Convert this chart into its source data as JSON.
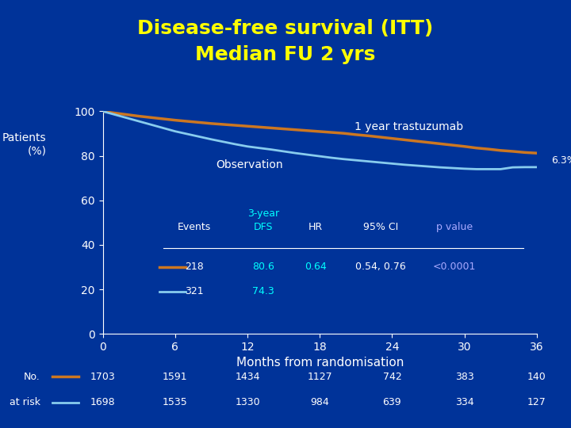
{
  "title_line1": "Disease-free survival (ITT)",
  "title_line2": "Median FU 2 yrs",
  "title_color": "#FFFF00",
  "background_color": "#003399",
  "ylabel": "Patients\n(%)",
  "xlabel": "Months from randomisation",
  "xlabel_color": "#FFFFFF",
  "ylabel_color": "#FFFFFF",
  "tick_color": "#FFFFFF",
  "xlim": [
    0,
    36
  ],
  "ylim": [
    0,
    100
  ],
  "xticks": [
    0,
    6,
    12,
    18,
    24,
    30,
    36
  ],
  "yticks": [
    0,
    20,
    40,
    60,
    80,
    100
  ],
  "trastuzumab_x": [
    0,
    1,
    2,
    3,
    4,
    5,
    6,
    7,
    8,
    9,
    10,
    11,
    12,
    13,
    14,
    15,
    16,
    17,
    18,
    19,
    20,
    21,
    22,
    23,
    24,
    25,
    26,
    27,
    28,
    29,
    30,
    31,
    32,
    33,
    34,
    35,
    36
  ],
  "trastuzumab_y": [
    100,
    99.2,
    98.5,
    97.8,
    97.2,
    96.6,
    96.0,
    95.5,
    95.0,
    94.5,
    94.1,
    93.7,
    93.3,
    92.9,
    92.5,
    92.1,
    91.7,
    91.3,
    90.9,
    90.5,
    90.1,
    89.5,
    89.0,
    88.4,
    87.8,
    87.2,
    86.6,
    86.0,
    85.4,
    84.8,
    84.2,
    83.5,
    83.0,
    82.4,
    82.0,
    81.5,
    81.2
  ],
  "observation_x": [
    0,
    1,
    2,
    3,
    4,
    5,
    6,
    7,
    8,
    9,
    10,
    11,
    12,
    13,
    14,
    15,
    16,
    17,
    18,
    19,
    20,
    21,
    22,
    23,
    24,
    25,
    26,
    27,
    28,
    29,
    30,
    31,
    32,
    33,
    34,
    35,
    36
  ],
  "observation_y": [
    100,
    98.5,
    97.0,
    95.5,
    94.0,
    92.5,
    91.0,
    89.8,
    88.6,
    87.4,
    86.3,
    85.2,
    84.2,
    83.5,
    82.8,
    82.0,
    81.2,
    80.5,
    79.8,
    79.1,
    78.5,
    78.0,
    77.5,
    77.0,
    76.5,
    76.0,
    75.6,
    75.2,
    74.8,
    74.5,
    74.2,
    74.0,
    74.0,
    74.0,
    74.8,
    74.9,
    74.9
  ],
  "trastuzumab_color": "#CC7722",
  "observation_color": "#88CCEE",
  "trastuzumab_label": "1 year trastuzumab",
  "observation_label": "Observation",
  "table_header_color": "#00FFFF",
  "table_data_color_dfs": "#00FFFF",
  "table_data_color_hr": "#00FFFF",
  "table_data_color_white": "#FFFFFF",
  "pvalue_color": "#AAAAFF",
  "no_at_risk_label_line1": "No.",
  "no_at_risk_label_line2": "at risk",
  "trastuzumab_at_risk": [
    1703,
    1591,
    1434,
    1127,
    742,
    383,
    140
  ],
  "observation_at_risk": [
    1698,
    1535,
    1330,
    984,
    639,
    334,
    127
  ],
  "at_risk_xticks": [
    0,
    6,
    12,
    18,
    24,
    30,
    36
  ],
  "hline_y_axes": 0.385
}
